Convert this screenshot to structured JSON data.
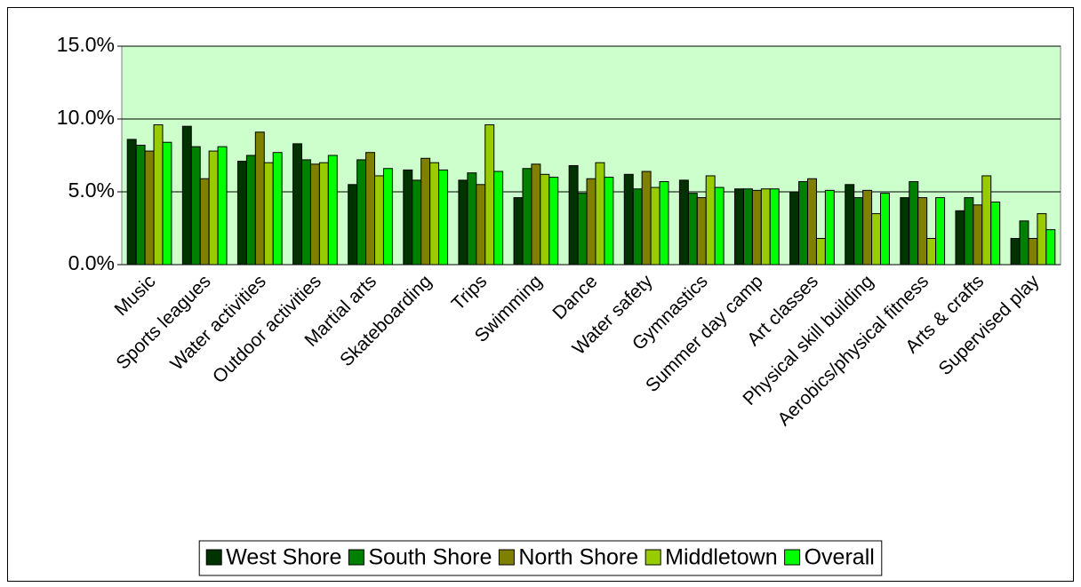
{
  "chart_data": {
    "type": "bar",
    "categories": [
      "Music",
      "Sports leagues",
      "Water activities",
      "Outdoor activities",
      "Martial arts",
      "Skateboarding",
      "Trips",
      "Swimming",
      "Dance",
      "Water safety",
      "Gymnastics",
      "Summer day camp",
      "Art classes",
      "Physical skill building",
      "Aerobics/physical fitness",
      "Arts & crafts",
      "Supervised play"
    ],
    "series": [
      {
        "name": "West Shore",
        "color": "#003300",
        "values": [
          8.6,
          9.5,
          7.1,
          8.3,
          5.5,
          6.5,
          5.8,
          4.6,
          6.8,
          6.2,
          5.8,
          5.2,
          5.0,
          5.5,
          4.6,
          3.7,
          1.8
        ]
      },
      {
        "name": "South Shore",
        "color": "#008000",
        "values": [
          8.2,
          8.1,
          7.5,
          7.2,
          7.2,
          5.8,
          6.3,
          6.6,
          4.9,
          5.2,
          4.9,
          5.2,
          5.7,
          4.6,
          5.7,
          4.6,
          3.0
        ]
      },
      {
        "name": "North Shore",
        "color": "#808000",
        "values": [
          7.8,
          5.9,
          9.1,
          6.9,
          7.7,
          7.3,
          5.5,
          6.9,
          5.9,
          6.4,
          4.6,
          5.1,
          5.9,
          5.1,
          4.6,
          4.1,
          1.8
        ]
      },
      {
        "name": "Middletown",
        "color": "#99cc00",
        "values": [
          9.6,
          7.8,
          7.0,
          7.0,
          6.1,
          7.0,
          9.6,
          6.2,
          7.0,
          5.3,
          6.1,
          5.2,
          1.8,
          3.5,
          1.8,
          6.1,
          3.5
        ]
      },
      {
        "name": "Overall",
        "color": "#00ff00",
        "values": [
          8.4,
          8.1,
          7.7,
          7.5,
          6.6,
          6.5,
          6.4,
          6.0,
          6.0,
          5.7,
          5.3,
          5.2,
          5.1,
          4.9,
          4.6,
          4.3,
          2.4
        ]
      }
    ],
    "ylim": [
      0,
      15
    ],
    "yticks": [
      {
        "value": 0,
        "label": "0.0%"
      },
      {
        "value": 5,
        "label": "5.0%"
      },
      {
        "value": 10,
        "label": "10.0%"
      },
      {
        "value": 15,
        "label": "15.0%"
      }
    ],
    "grid": true,
    "plot_background": "#ccffcc",
    "legend": "bottom"
  }
}
